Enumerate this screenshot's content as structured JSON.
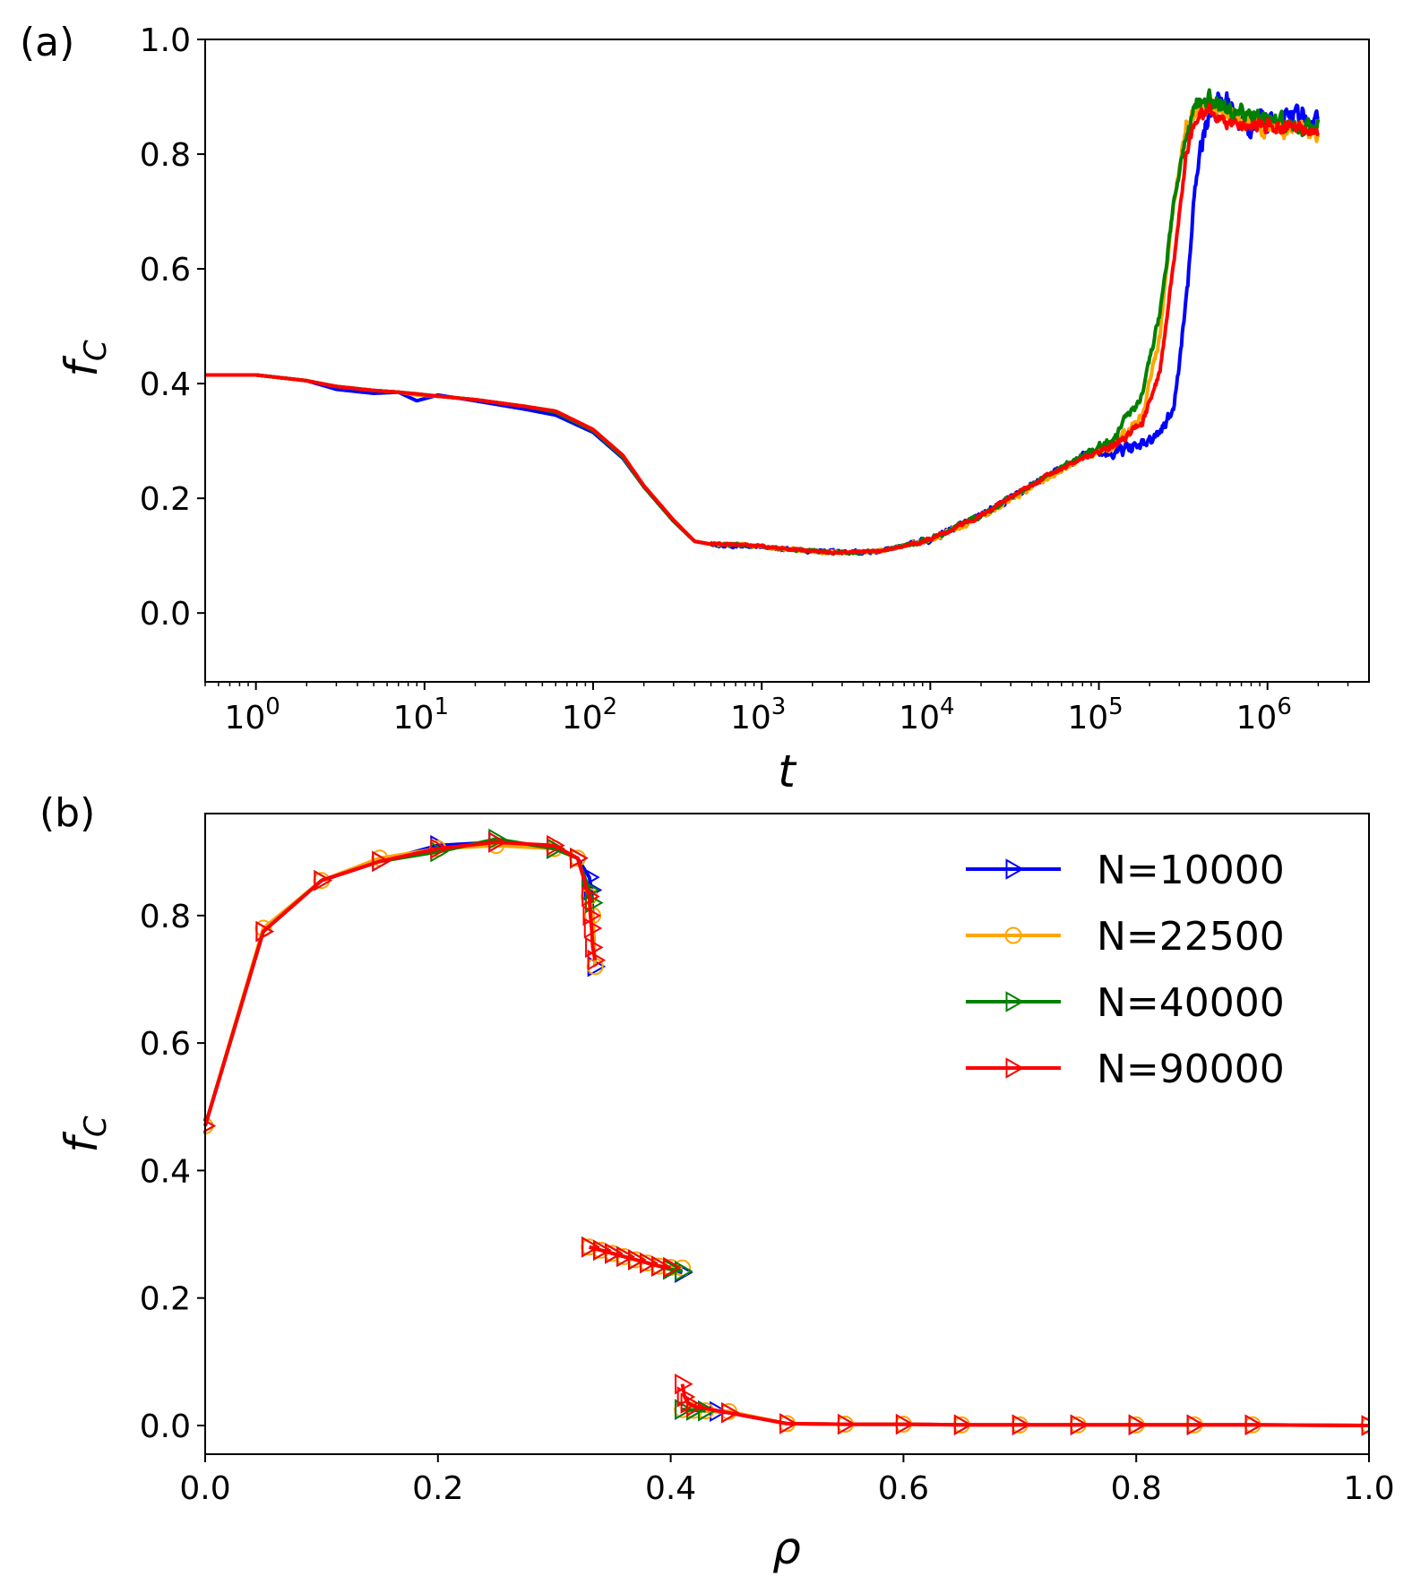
{
  "chart_data": [
    {
      "panel_label": "(a)",
      "type": "line",
      "xscale": "log",
      "xlabel": "t",
      "ylabel_main": "f",
      "ylabel_sub": "C",
      "xlim": [
        0.5,
        4000000
      ],
      "ylim": [
        -0.12,
        1.0
      ],
      "x_ticks": [
        {
          "value": 1,
          "base": "10",
          "exp": "0"
        },
        {
          "value": 10,
          "base": "10",
          "exp": "1"
        },
        {
          "value": 100,
          "base": "10",
          "exp": "2"
        },
        {
          "value": 1000,
          "base": "10",
          "exp": "3"
        },
        {
          "value": 10000,
          "base": "10",
          "exp": "4"
        },
        {
          "value": 100000,
          "base": "10",
          "exp": "5"
        },
        {
          "value": 1000000,
          "base": "10",
          "exp": "6"
        }
      ],
      "y_ticks": [
        "0.0",
        "0.2",
        "0.4",
        "0.6",
        "0.8",
        "1.0"
      ],
      "series": [
        {
          "name": "N=10000",
          "color": "#0000ff",
          "noise": 0.022,
          "x": [
            0.5,
            1,
            2,
            3,
            5,
            7,
            9,
            12,
            20,
            40,
            60,
            100,
            150,
            200,
            300,
            400,
            500,
            700,
            1000,
            2000,
            3000,
            5000,
            10000,
            20000,
            50000,
            80000,
            120000,
            180000,
            230000,
            280000,
            330000,
            380000,
            450000,
            550000,
            700000,
            1000000,
            1500000,
            2000000
          ],
          "y": [
            0.415,
            0.415,
            0.405,
            0.39,
            0.383,
            0.385,
            0.37,
            0.38,
            0.37,
            0.355,
            0.345,
            0.315,
            0.27,
            0.22,
            0.16,
            0.125,
            0.12,
            0.118,
            0.115,
            0.108,
            0.105,
            0.108,
            0.13,
            0.17,
            0.24,
            0.275,
            0.285,
            0.29,
            0.31,
            0.36,
            0.55,
            0.78,
            0.87,
            0.9,
            0.85,
            0.85,
            0.87,
            0.86
          ]
        },
        {
          "name": "N=22500",
          "color": "#ffa500",
          "noise": 0.018,
          "x": [
            0.5,
            1,
            2,
            3,
            5,
            7,
            9,
            12,
            20,
            40,
            60,
            100,
            150,
            200,
            300,
            400,
            500,
            700,
            1000,
            2000,
            3000,
            5000,
            10000,
            20000,
            50000,
            80000,
            120000,
            180000,
            230000,
            280000,
            330000,
            380000,
            450000,
            550000,
            700000,
            1000000,
            1500000,
            2000000
          ],
          "y": [
            0.415,
            0.415,
            0.405,
            0.395,
            0.388,
            0.385,
            0.38,
            0.378,
            0.372,
            0.36,
            0.352,
            0.32,
            0.275,
            0.222,
            0.162,
            0.125,
            0.12,
            0.12,
            0.115,
            0.108,
            0.105,
            0.108,
            0.128,
            0.168,
            0.235,
            0.27,
            0.29,
            0.34,
            0.48,
            0.72,
            0.85,
            0.88,
            0.88,
            0.87,
            0.86,
            0.85,
            0.84,
            0.84
          ]
        },
        {
          "name": "N=40000",
          "color": "#008000",
          "noise": 0.016,
          "x": [
            0.5,
            1,
            2,
            3,
            5,
            7,
            9,
            12,
            20,
            40,
            60,
            100,
            150,
            200,
            300,
            400,
            500,
            700,
            1000,
            2000,
            3000,
            5000,
            10000,
            20000,
            50000,
            80000,
            120000,
            180000,
            230000,
            280000,
            330000,
            380000,
            450000,
            550000,
            700000,
            1000000,
            1500000,
            2000000
          ],
          "y": [
            0.415,
            0.415,
            0.405,
            0.395,
            0.388,
            0.385,
            0.382,
            0.378,
            0.372,
            0.36,
            0.35,
            0.318,
            0.272,
            0.22,
            0.16,
            0.125,
            0.12,
            0.12,
            0.116,
            0.108,
            0.105,
            0.108,
            0.128,
            0.17,
            0.24,
            0.275,
            0.3,
            0.38,
            0.52,
            0.72,
            0.84,
            0.89,
            0.9,
            0.88,
            0.87,
            0.86,
            0.85,
            0.85
          ]
        },
        {
          "name": "N=90000",
          "color": "#ff0000",
          "noise": 0.012,
          "x": [
            0.5,
            1,
            2,
            3,
            5,
            7,
            9,
            12,
            20,
            40,
            60,
            100,
            150,
            200,
            300,
            400,
            500,
            700,
            1000,
            2000,
            3000,
            5000,
            10000,
            20000,
            50000,
            80000,
            120000,
            180000,
            230000,
            280000,
            330000,
            380000,
            450000,
            550000,
            700000,
            1000000,
            1500000,
            2000000
          ],
          "y": [
            0.415,
            0.415,
            0.405,
            0.395,
            0.388,
            0.385,
            0.382,
            0.378,
            0.372,
            0.36,
            0.352,
            0.32,
            0.275,
            0.222,
            0.162,
            0.125,
            0.12,
            0.12,
            0.116,
            0.108,
            0.105,
            0.108,
            0.128,
            0.17,
            0.24,
            0.27,
            0.29,
            0.33,
            0.42,
            0.62,
            0.8,
            0.86,
            0.88,
            0.86,
            0.85,
            0.85,
            0.845,
            0.84
          ]
        }
      ]
    },
    {
      "panel_label": "(b)",
      "type": "line",
      "xscale": "linear",
      "xlabel": "ρ",
      "ylabel_main": "f",
      "ylabel_sub": "C",
      "xlim": [
        0.0,
        1.0
      ],
      "ylim": [
        -0.045,
        0.96
      ],
      "x_ticks": [
        "0.0",
        "0.2",
        "0.4",
        "0.6",
        "0.8",
        "1.0"
      ],
      "y_ticks": [
        "0.0",
        "0.2",
        "0.4",
        "0.6",
        "0.8"
      ],
      "legend_position": "top-right",
      "series": [
        {
          "name": "N=10000",
          "color": "#0000ff",
          "marker": "triangle-right",
          "segments": [
            {
              "x": [
                0.0,
                0.05,
                0.1,
                0.15,
                0.2,
                0.25,
                0.3,
                0.32,
                0.33,
                0.332,
                0.335
              ],
              "y": [
                0.47,
                0.775,
                0.855,
                0.885,
                0.91,
                0.915,
                0.905,
                0.89,
                0.86,
                0.84,
                0.72
              ]
            },
            {
              "x": [
                0.33,
                0.34,
                0.35,
                0.36,
                0.37,
                0.38,
                0.39,
                0.4,
                0.41
              ],
              "y": [
                0.28,
                0.275,
                0.27,
                0.265,
                0.26,
                0.255,
                0.25,
                0.245,
                0.24
              ]
            },
            {
              "x": [
                0.41,
                0.42,
                0.43,
                0.44,
                0.45,
                0.5,
                0.55,
                0.6,
                0.65,
                0.7,
                0.75,
                0.8,
                0.85,
                0.9,
                1.0
              ],
              "y": [
                0.025,
                0.024,
                0.023,
                0.022,
                0.02,
                0.003,
                0.002,
                0.002,
                0.001,
                0.001,
                0.001,
                0.001,
                0.001,
                0.001,
                0.0
              ]
            }
          ]
        },
        {
          "name": "N=22500",
          "color": "#ffa500",
          "marker": "circle",
          "segments": [
            {
              "x": [
                0.0,
                0.05,
                0.1,
                0.15,
                0.2,
                0.25,
                0.3,
                0.32,
                0.33,
                0.333,
                0.335
              ],
              "y": [
                0.47,
                0.78,
                0.855,
                0.89,
                0.905,
                0.91,
                0.905,
                0.89,
                0.83,
                0.8,
                0.72
              ]
            },
            {
              "x": [
                0.33,
                0.34,
                0.35,
                0.36,
                0.37,
                0.38,
                0.39,
                0.4,
                0.41
              ],
              "y": [
                0.28,
                0.275,
                0.27,
                0.265,
                0.26,
                0.255,
                0.25,
                0.248,
                0.247
              ]
            },
            {
              "x": [
                0.41,
                0.42,
                0.43,
                0.45,
                0.5,
                0.55,
                0.6,
                0.65,
                0.7,
                0.75,
                0.8,
                0.85,
                0.9,
                1.0
              ],
              "y": [
                0.025,
                0.024,
                0.023,
                0.022,
                0.003,
                0.002,
                0.002,
                0.001,
                0.001,
                0.001,
                0.001,
                0.001,
                0.001,
                0.0
              ]
            }
          ]
        },
        {
          "name": "N=40000",
          "color": "#008000",
          "marker": "triangle-right",
          "segments": [
            {
              "x": [
                0.0,
                0.05,
                0.1,
                0.15,
                0.2,
                0.25,
                0.3,
                0.32,
                0.33,
                0.333
              ],
              "y": [
                0.47,
                0.775,
                0.855,
                0.885,
                0.9,
                0.92,
                0.905,
                0.89,
                0.84,
                0.82
              ]
            },
            {
              "x": [
                0.33,
                0.34,
                0.35,
                0.36,
                0.37,
                0.38,
                0.39,
                0.4,
                0.41
              ],
              "y": [
                0.28,
                0.275,
                0.27,
                0.265,
                0.26,
                0.255,
                0.25,
                0.245,
                0.242
              ]
            },
            {
              "x": [
                0.41,
                0.42,
                0.43
              ],
              "y": [
                0.025,
                0.024,
                0.023
              ]
            }
          ]
        },
        {
          "name": "N=90000",
          "color": "#ff0000",
          "marker": "triangle-right",
          "segments": [
            {
              "x": [
                0.0,
                0.05,
                0.1,
                0.15,
                0.2,
                0.25,
                0.3,
                0.32,
                0.33,
                0.331,
                0.332,
                0.333,
                0.335
              ],
              "y": [
                0.47,
                0.775,
                0.855,
                0.885,
                0.905,
                0.915,
                0.91,
                0.89,
                0.83,
                0.8,
                0.78,
                0.75,
                0.73
              ]
            },
            {
              "x": [
                0.33,
                0.34,
                0.35,
                0.36,
                0.37,
                0.38,
                0.39,
                0.4
              ],
              "y": [
                0.28,
                0.275,
                0.27,
                0.265,
                0.26,
                0.255,
                0.25,
                0.248
              ]
            },
            {
              "x": [
                0.41,
                0.412,
                0.415,
                0.42,
                0.45,
                0.5,
                0.55,
                0.6,
                0.65,
                0.7,
                0.75,
                0.8,
                0.85,
                0.9,
                1.0
              ],
              "y": [
                0.065,
                0.045,
                0.035,
                0.03,
                0.02,
                0.003,
                0.002,
                0.002,
                0.001,
                0.001,
                0.001,
                0.001,
                0.001,
                0.001,
                0.0
              ]
            }
          ]
        }
      ]
    }
  ]
}
